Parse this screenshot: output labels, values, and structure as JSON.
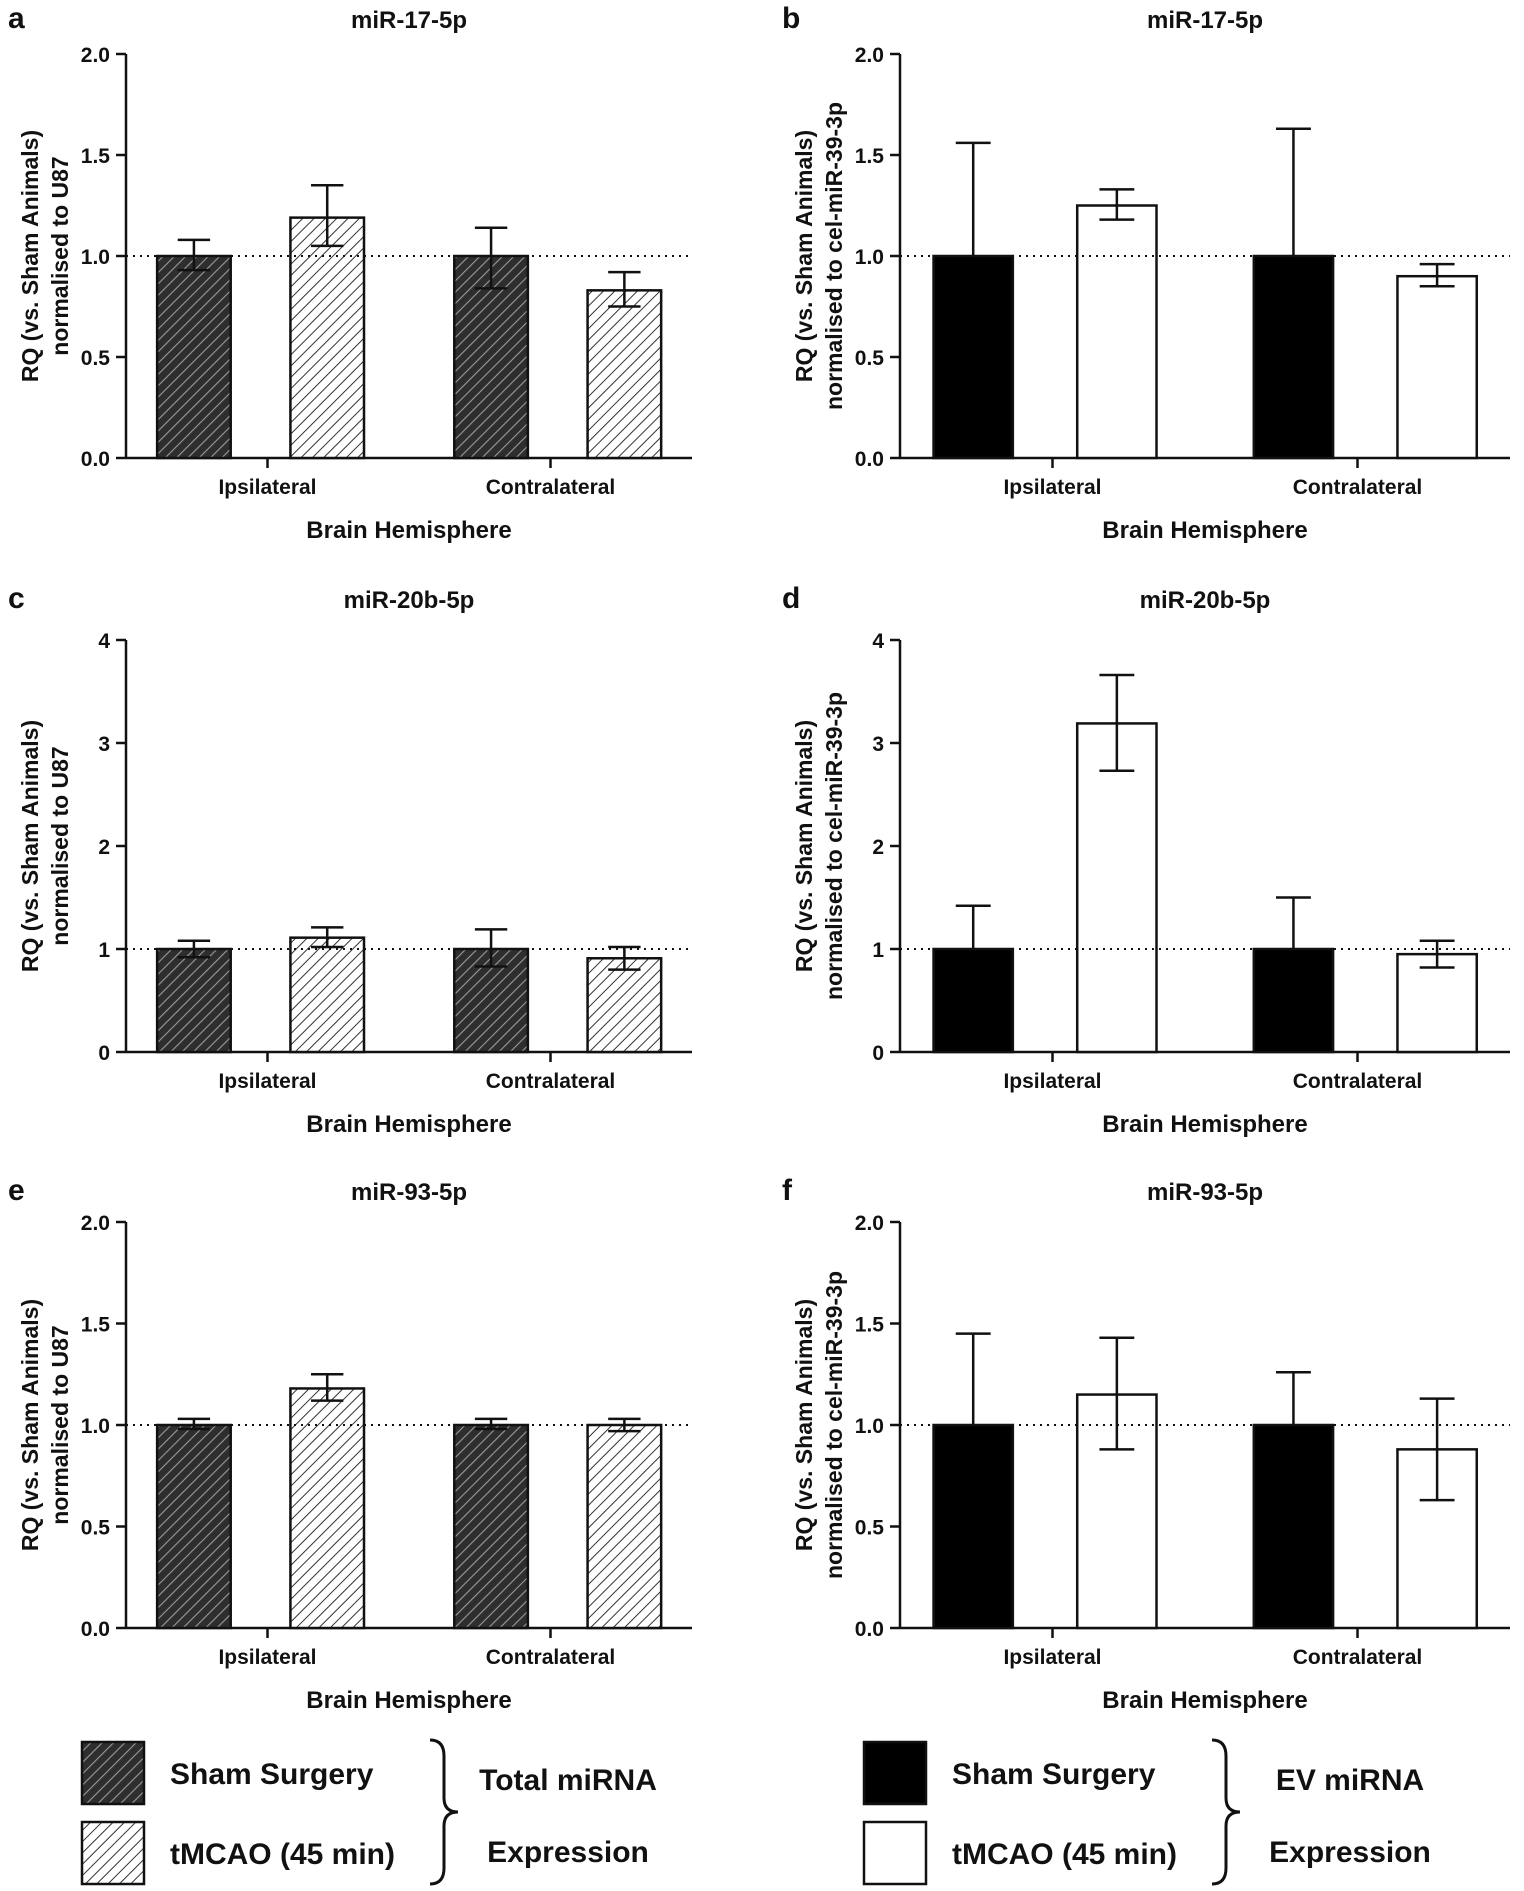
{
  "colors": {
    "sham_total": "#3a3a3a",
    "tmcao_total": "#e4e4e4",
    "sham_ev": "#000000",
    "tmcao_ev": "#ffffff",
    "axis": "#111111"
  },
  "chart_data": [
    {
      "panel": "a",
      "type": "bar",
      "title": "miR-17-5p",
      "ylabel": [
        "RQ (vs. Sham Animals)",
        "normalised to U87"
      ],
      "xlabel": "Brain Hemisphere",
      "categories": [
        "Ipsilateral",
        "Contralateral"
      ],
      "ylim": [
        0,
        2.0
      ],
      "yticks": [
        "0.0",
        "0.5",
        "1.0",
        "1.5",
        "2.0"
      ],
      "yticks_val": [
        0,
        0.5,
        1.0,
        1.5,
        2.0
      ],
      "reference_line": 1.0,
      "style": "hatched",
      "series": [
        {
          "name": "Sham Surgery",
          "values": [
            1.0,
            1.0
          ],
          "err_low": [
            0.93,
            0.84
          ],
          "err_high": [
            1.08,
            1.14
          ]
        },
        {
          "name": "tMCAO (45 min)",
          "values": [
            1.19,
            0.83
          ],
          "err_low": [
            1.05,
            0.75
          ],
          "err_high": [
            1.35,
            0.92
          ]
        }
      ]
    },
    {
      "panel": "b",
      "type": "bar",
      "title": "miR-17-5p",
      "ylabel": [
        "RQ (vs. Sham Animals)",
        "normalised to cel-miR-39-3p"
      ],
      "xlabel": "Brain Hemisphere",
      "categories": [
        "Ipsilateral",
        "Contralateral"
      ],
      "ylim": [
        0,
        2.0
      ],
      "yticks": [
        "0.0",
        "0.5",
        "1.0",
        "1.5",
        "2.0"
      ],
      "yticks_val": [
        0,
        0.5,
        1.0,
        1.5,
        2.0
      ],
      "reference_line": 1.0,
      "style": "solid",
      "series": [
        {
          "name": "Sham Surgery",
          "values": [
            1.0,
            1.0
          ],
          "err_low": [
            1.0,
            1.0
          ],
          "err_high": [
            1.56,
            1.63
          ]
        },
        {
          "name": "tMCAO (45 min)",
          "values": [
            1.25,
            0.9
          ],
          "err_low": [
            1.18,
            0.85
          ],
          "err_high": [
            1.33,
            0.96
          ]
        }
      ]
    },
    {
      "panel": "c",
      "type": "bar",
      "title": "miR-20b-5p",
      "ylabel": [
        "RQ (vs. Sham Animals)",
        "normalised to U87"
      ],
      "xlabel": "Brain Hemisphere",
      "categories": [
        "Ipsilateral",
        "Contralateral"
      ],
      "ylim": [
        0,
        4
      ],
      "yticks": [
        "0",
        "1",
        "2",
        "3",
        "4"
      ],
      "yticks_val": [
        0,
        1,
        2,
        3,
        4
      ],
      "reference_line": 1.0,
      "style": "hatched",
      "series": [
        {
          "name": "Sham Surgery",
          "values": [
            1.0,
            1.0
          ],
          "err_low": [
            0.92,
            0.83
          ],
          "err_high": [
            1.08,
            1.19
          ]
        },
        {
          "name": "tMCAO (45 min)",
          "values": [
            1.11,
            0.91
          ],
          "err_low": [
            1.02,
            0.8
          ],
          "err_high": [
            1.21,
            1.02
          ]
        }
      ]
    },
    {
      "panel": "d",
      "type": "bar",
      "title": "miR-20b-5p",
      "ylabel": [
        "RQ (vs. Sham Animals)",
        "normalised to cel-miR-39-3p"
      ],
      "xlabel": "Brain Hemisphere",
      "categories": [
        "Ipsilateral",
        "Contralateral"
      ],
      "ylim": [
        0,
        4
      ],
      "yticks": [
        "0",
        "1",
        "2",
        "3",
        "4"
      ],
      "yticks_val": [
        0,
        1,
        2,
        3,
        4
      ],
      "reference_line": 1.0,
      "style": "solid",
      "series": [
        {
          "name": "Sham Surgery",
          "values": [
            1.0,
            1.0
          ],
          "err_low": [
            1.0,
            1.0
          ],
          "err_high": [
            1.42,
            1.5
          ]
        },
        {
          "name": "tMCAO (45 min)",
          "values": [
            3.19,
            0.95
          ],
          "err_low": [
            2.73,
            0.82
          ],
          "err_high": [
            3.66,
            1.08
          ]
        }
      ]
    },
    {
      "panel": "e",
      "type": "bar",
      "title": "miR-93-5p",
      "ylabel": [
        "RQ (vs. Sham Animals)",
        "normalised to U87"
      ],
      "xlabel": "Brain Hemisphere",
      "categories": [
        "Ipsilateral",
        "Contralateral"
      ],
      "ylim": [
        0,
        2.0
      ],
      "yticks": [
        "0.0",
        "0.5",
        "1.0",
        "1.5",
        "2.0"
      ],
      "yticks_val": [
        0,
        0.5,
        1.0,
        1.5,
        2.0
      ],
      "reference_line": 1.0,
      "style": "hatched",
      "series": [
        {
          "name": "Sham Surgery",
          "values": [
            1.0,
            1.0
          ],
          "err_low": [
            0.98,
            0.98
          ],
          "err_high": [
            1.03,
            1.03
          ]
        },
        {
          "name": "tMCAO (45 min)",
          "values": [
            1.18,
            1.0
          ],
          "err_low": [
            1.12,
            0.97
          ],
          "err_high": [
            1.25,
            1.03
          ]
        }
      ]
    },
    {
      "panel": "f",
      "type": "bar",
      "title": "miR-93-5p",
      "ylabel": [
        "RQ (vs. Sham Animals)",
        "normalised to cel-miR-39-3p"
      ],
      "xlabel": "Brain Hemisphere",
      "categories": [
        "Ipsilateral",
        "Contralateral"
      ],
      "ylim": [
        0,
        2.0
      ],
      "yticks": [
        "0.0",
        "0.5",
        "1.0",
        "1.5",
        "2.0"
      ],
      "yticks_val": [
        0,
        0.5,
        1.0,
        1.5,
        2.0
      ],
      "reference_line": 1.0,
      "style": "solid",
      "series": [
        {
          "name": "Sham Surgery",
          "values": [
            1.0,
            1.0
          ],
          "err_low": [
            1.0,
            1.0
          ],
          "err_high": [
            1.45,
            1.26
          ]
        },
        {
          "name": "tMCAO (45 min)",
          "values": [
            1.15,
            0.88
          ],
          "err_low": [
            0.88,
            0.63
          ],
          "err_high": [
            1.43,
            1.13
          ]
        }
      ]
    }
  ],
  "legends": [
    {
      "style": "hatched",
      "items": [
        "Sham Surgery",
        "tMCAO (45 min)"
      ],
      "group_label": [
        "Total miRNA",
        "Expression"
      ]
    },
    {
      "style": "solid",
      "items": [
        "Sham Surgery",
        "tMCAO (45 min)"
      ],
      "group_label": [
        "EV miRNA",
        "Expression"
      ]
    }
  ]
}
